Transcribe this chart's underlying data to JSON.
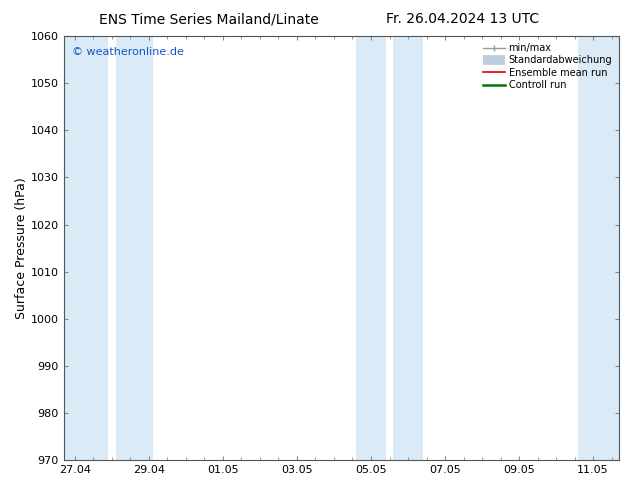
{
  "title_left": "ENS Time Series Mailand/Linate",
  "title_right": "Fr. 26.04.2024 13 UTC",
  "ylabel": "Surface Pressure (hPa)",
  "ylim": [
    970,
    1060
  ],
  "yticks": [
    970,
    980,
    990,
    1000,
    1010,
    1020,
    1030,
    1040,
    1050,
    1060
  ],
  "xtick_labels": [
    "27.04",
    "29.04",
    "01.05",
    "03.05",
    "05.05",
    "07.05",
    "09.05",
    "11.05"
  ],
  "xtick_positions": [
    0,
    2,
    4,
    6,
    8,
    10,
    12,
    14
  ],
  "xlim": [
    -0.3,
    14.7
  ],
  "watermark": "© weatheronline.de",
  "watermark_color": "#1155cc",
  "background_color": "#ffffff",
  "plot_bg_color": "#ffffff",
  "band_color": "#daeaf7",
  "shaded_bands": [
    {
      "xstart": -0.3,
      "xend": 0.9
    },
    {
      "xstart": 1.1,
      "xend": 2.1
    },
    {
      "xstart": 7.6,
      "xend": 8.4
    },
    {
      "xstart": 8.6,
      "xend": 9.4
    },
    {
      "xstart": 13.6,
      "xend": 14.7
    }
  ],
  "legend_entries": [
    {
      "label": "min/max",
      "color": "#999999",
      "lw": 1.0
    },
    {
      "label": "Standardabweichung",
      "color": "#bbccdd",
      "lw": 7
    },
    {
      "label": "Ensemble mean run",
      "color": "#dd0000",
      "lw": 1.2
    },
    {
      "label": "Controll run",
      "color": "#007700",
      "lw": 1.8
    }
  ],
  "title_fontsize": 10,
  "tick_fontsize": 8,
  "ylabel_fontsize": 9,
  "watermark_fontsize": 8,
  "spine_color": "#555555"
}
